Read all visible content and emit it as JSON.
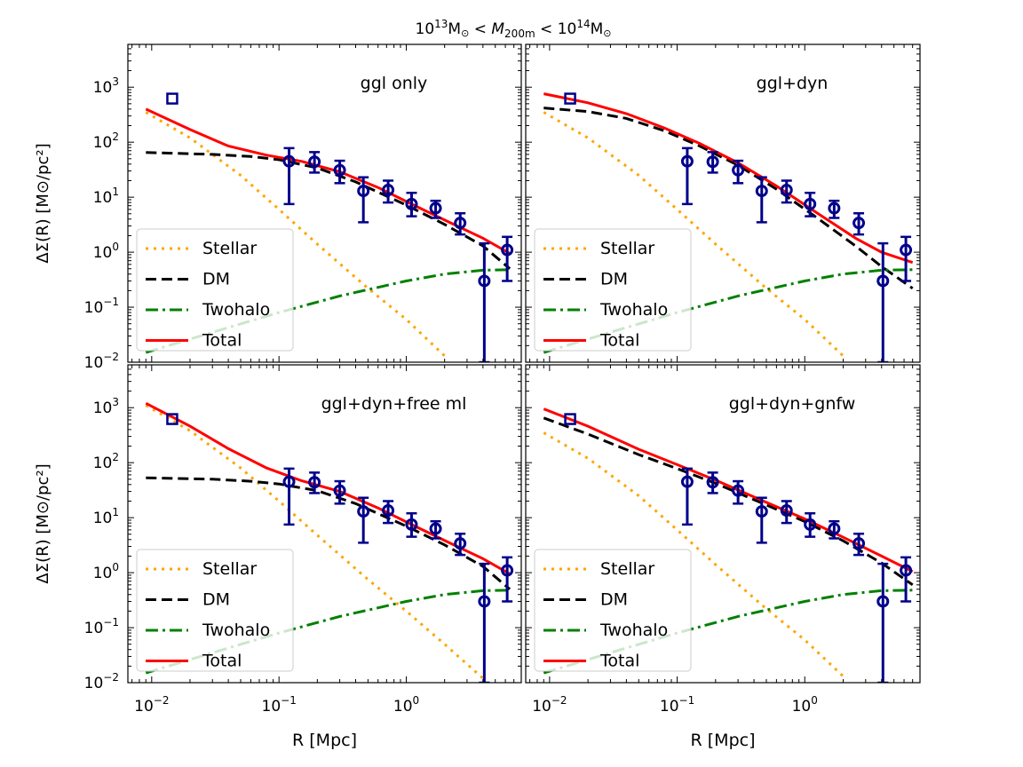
{
  "figure": {
    "title_prefix": "10",
    "title_exp1": "13",
    "title_msun1": "M",
    "title_lt1": " < ",
    "title_mvar": "M",
    "title_msub": "200m",
    "title_lt2": " < 10",
    "title_exp2": "14",
    "title_msun2": "M"
  },
  "colors": {
    "stellar": "#ffa500",
    "dm": "#000000",
    "twohalo": "#008000",
    "total": "#ff0000",
    "data": "#00008b"
  },
  "chart_data": [
    {
      "type": "line",
      "title": "ggl only",
      "xlabel": "R [Mpc]",
      "ylabel": "ΔΣ(R) [M⊙/pc²]",
      "xscale": "log",
      "yscale": "log",
      "xlim": [
        0.0065,
        8.0
      ],
      "ylim": [
        0.01,
        6000
      ],
      "legend": {
        "position": "lower-left",
        "entries": [
          "Stellar",
          "DM",
          "Twohalo",
          "Total"
        ]
      },
      "series": [
        {
          "name": "Stellar",
          "style": "dotted",
          "x": [
            0.009,
            0.02,
            0.05,
            0.1,
            0.2,
            0.5,
            1.0,
            2.0
          ],
          "y": [
            350,
            120,
            25,
            6.0,
            1.4,
            0.22,
            0.06,
            0.013
          ]
        },
        {
          "name": "DM",
          "style": "dashed",
          "x": [
            0.009,
            0.03,
            0.06,
            0.1,
            0.2,
            0.4,
            1.0,
            2.0,
            4.0,
            6.5
          ],
          "y": [
            65,
            60,
            55,
            48,
            34,
            19,
            7.2,
            3.2,
            1.3,
            0.5
          ]
        },
        {
          "name": "Twohalo",
          "style": "dashdot",
          "x": [
            0.009,
            0.03,
            0.1,
            0.3,
            1.0,
            2.0,
            4.0,
            6.5
          ],
          "y": [
            0.015,
            0.035,
            0.08,
            0.16,
            0.3,
            0.4,
            0.47,
            0.48
          ]
        },
        {
          "name": "Total",
          "style": "solid",
          "x": [
            0.009,
            0.02,
            0.04,
            0.08,
            0.15,
            0.3,
            0.6,
            1.2,
            2.5,
            4.0,
            6.5
          ],
          "y": [
            400,
            170,
            85,
            58,
            45,
            29,
            15,
            6.8,
            3.0,
            1.8,
            0.95
          ]
        }
      ],
      "points": {
        "x": [
          0.12,
          0.19,
          0.3,
          0.46,
          0.72,
          1.1,
          1.7,
          2.65,
          4.1,
          6.2
        ],
        "y": [
          45,
          44,
          31,
          13,
          13.5,
          7.5,
          6.3,
          3.4,
          0.3,
          1.1
        ],
        "ylo": [
          7.5,
          28,
          18,
          3.5,
          8,
          4.5,
          4.2,
          2.1,
          0.01,
          0.3
        ],
        "yhi": [
          78,
          66,
          46,
          23,
          20,
          12,
          8.6,
          5.1,
          1.45,
          1.9
        ]
      },
      "square_point": {
        "x": 0.0145,
        "y": 620
      }
    },
    {
      "type": "line",
      "title": "ggl+dyn",
      "xlabel": "R [Mpc]",
      "ylabel": "",
      "xscale": "log",
      "yscale": "log",
      "xlim": [
        0.0065,
        8.0
      ],
      "ylim": [
        0.01,
        6000
      ],
      "legend": {
        "position": "lower-left",
        "entries": [
          "Stellar",
          "DM",
          "Twohalo",
          "Total"
        ]
      },
      "series": [
        {
          "name": "Stellar",
          "style": "dotted",
          "x": [
            0.009,
            0.02,
            0.05,
            0.1,
            0.2,
            0.5,
            1.0,
            2.0
          ],
          "y": [
            350,
            120,
            25,
            6.0,
            1.4,
            0.22,
            0.06,
            0.013
          ]
        },
        {
          "name": "DM",
          "style": "dashed",
          "x": [
            0.009,
            0.02,
            0.04,
            0.08,
            0.15,
            0.3,
            0.6,
            1.2,
            2.5,
            4.0,
            7.0
          ],
          "y": [
            420,
            360,
            270,
            160,
            85,
            38,
            14,
            4.5,
            1.3,
            0.55,
            0.22
          ]
        },
        {
          "name": "Twohalo",
          "style": "dashdot",
          "x": [
            0.009,
            0.03,
            0.1,
            0.3,
            1.0,
            2.0,
            4.0,
            7.0
          ],
          "y": [
            0.015,
            0.035,
            0.08,
            0.16,
            0.3,
            0.4,
            0.47,
            0.48
          ]
        },
        {
          "name": "Total",
          "style": "solid",
          "x": [
            0.009,
            0.02,
            0.04,
            0.08,
            0.15,
            0.3,
            0.6,
            1.2,
            2.5,
            4.0,
            7.0
          ],
          "y": [
            760,
            520,
            330,
            180,
            95,
            42,
            16,
            5.5,
            1.8,
            1.0,
            0.65
          ]
        }
      ],
      "points": {
        "x": [
          0.12,
          0.19,
          0.3,
          0.46,
          0.72,
          1.1,
          1.7,
          2.65,
          4.1,
          6.2
        ],
        "y": [
          45,
          44,
          31,
          13,
          13.5,
          7.5,
          6.3,
          3.4,
          0.3,
          1.1
        ],
        "ylo": [
          7.5,
          28,
          18,
          3.5,
          8,
          4.5,
          4.2,
          2.1,
          0.01,
          0.3
        ],
        "yhi": [
          78,
          66,
          46,
          23,
          20,
          12,
          8.6,
          5.1,
          1.45,
          1.9
        ]
      },
      "square_point": {
        "x": 0.0145,
        "y": 620
      }
    },
    {
      "type": "line",
      "title": "ggl+dyn+free ml",
      "xlabel": "R [Mpc]",
      "ylabel": "ΔΣ(R) [M⊙/pc²]",
      "xscale": "log",
      "yscale": "log",
      "xlim": [
        0.0065,
        8.0
      ],
      "ylim": [
        0.01,
        6000
      ],
      "legend": {
        "position": "lower-left",
        "entries": [
          "Stellar",
          "DM",
          "Twohalo",
          "Total"
        ]
      },
      "series": [
        {
          "name": "Stellar",
          "style": "dotted",
          "x": [
            0.009,
            0.02,
            0.05,
            0.1,
            0.2,
            0.5,
            1.0,
            2.0,
            4.0
          ],
          "y": [
            1100,
            380,
            80,
            20,
            4.8,
            0.75,
            0.2,
            0.05,
            0.012
          ]
        },
        {
          "name": "DM",
          "style": "dashed",
          "x": [
            0.009,
            0.03,
            0.06,
            0.1,
            0.2,
            0.4,
            1.0,
            2.0,
            4.0,
            6.5
          ],
          "y": [
            53,
            50,
            46,
            41,
            31,
            18,
            7.0,
            3.2,
            1.3,
            0.5
          ]
        },
        {
          "name": "Twohalo",
          "style": "dashdot",
          "x": [
            0.009,
            0.03,
            0.1,
            0.3,
            1.0,
            2.0,
            4.0,
            6.5
          ],
          "y": [
            0.015,
            0.035,
            0.08,
            0.16,
            0.3,
            0.4,
            0.47,
            0.48
          ]
        },
        {
          "name": "Total",
          "style": "solid",
          "x": [
            0.009,
            0.02,
            0.04,
            0.08,
            0.15,
            0.3,
            0.6,
            1.2,
            2.5,
            4.0,
            6.5
          ],
          "y": [
            1200,
            460,
            180,
            80,
            47,
            30,
            15,
            6.8,
            3.0,
            1.8,
            0.95
          ]
        }
      ],
      "points": {
        "x": [
          0.12,
          0.19,
          0.3,
          0.46,
          0.72,
          1.1,
          1.7,
          2.65,
          4.1,
          6.2
        ],
        "y": [
          45,
          44,
          31,
          13,
          13.5,
          7.5,
          6.3,
          3.4,
          0.3,
          1.1
        ],
        "ylo": [
          7.5,
          28,
          18,
          3.5,
          8,
          4.5,
          4.2,
          2.1,
          0.01,
          0.3
        ],
        "yhi": [
          78,
          66,
          46,
          23,
          20,
          12,
          8.6,
          5.1,
          1.45,
          1.9
        ]
      },
      "square_point": {
        "x": 0.0145,
        "y": 620
      }
    },
    {
      "type": "line",
      "title": "ggl+dyn+gnfw",
      "xlabel": "R [Mpc]",
      "ylabel": "",
      "xscale": "log",
      "yscale": "log",
      "xlim": [
        0.0065,
        8.0
      ],
      "ylim": [
        0.01,
        6000
      ],
      "legend": {
        "position": "lower-left",
        "entries": [
          "Stellar",
          "DM",
          "Twohalo",
          "Total"
        ]
      },
      "series": [
        {
          "name": "Stellar",
          "style": "dotted",
          "x": [
            0.009,
            0.02,
            0.05,
            0.1,
            0.2,
            0.5,
            1.0,
            2.0
          ],
          "y": [
            350,
            120,
            25,
            6.0,
            1.4,
            0.22,
            0.06,
            0.013
          ]
        },
        {
          "name": "DM",
          "style": "dashed",
          "x": [
            0.009,
            0.02,
            0.05,
            0.1,
            0.2,
            0.5,
            1.0,
            2.0,
            4.0,
            7.0
          ],
          "y": [
            650,
            330,
            140,
            78,
            42,
            17,
            8.5,
            3.8,
            1.5,
            0.6
          ]
        },
        {
          "name": "Twohalo",
          "style": "dashdot",
          "x": [
            0.009,
            0.03,
            0.1,
            0.3,
            1.0,
            2.0,
            4.0,
            7.0
          ],
          "y": [
            0.015,
            0.035,
            0.08,
            0.16,
            0.3,
            0.4,
            0.47,
            0.48
          ]
        },
        {
          "name": "Total",
          "style": "solid",
          "x": [
            0.009,
            0.02,
            0.05,
            0.1,
            0.2,
            0.5,
            1.0,
            2.0,
            4.0,
            7.0
          ],
          "y": [
            950,
            460,
            175,
            92,
            48,
            19,
            9.5,
            4.4,
            2.0,
            1.05
          ]
        }
      ],
      "points": {
        "x": [
          0.12,
          0.19,
          0.3,
          0.46,
          0.72,
          1.1,
          1.7,
          2.65,
          4.1,
          6.2
        ],
        "y": [
          45,
          44,
          31,
          13,
          13.5,
          7.5,
          6.3,
          3.4,
          0.3,
          1.1
        ],
        "ylo": [
          7.5,
          28,
          18,
          3.5,
          8,
          4.5,
          4.2,
          2.1,
          0.01,
          0.3
        ],
        "yhi": [
          78,
          66,
          46,
          23,
          20,
          12,
          8.6,
          5.1,
          1.45,
          1.9
        ]
      },
      "square_point": {
        "x": 0.0145,
        "y": 620
      }
    }
  ]
}
